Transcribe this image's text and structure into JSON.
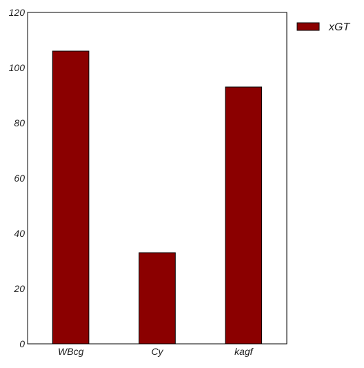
{
  "chart_data": {
    "type": "bar",
    "categories": [
      "WBcg",
      "Cy",
      "kagf"
    ],
    "series": [
      {
        "name": "xGT",
        "values": [
          106,
          33,
          93
        ],
        "color": "#8b0000"
      }
    ],
    "ylim": [
      0,
      120
    ],
    "yticks": [
      0,
      20,
      40,
      60,
      80,
      100,
      120
    ],
    "title": "",
    "xlabel": "",
    "ylabel": "",
    "grid": false,
    "legend": {
      "placement": "outside-top-right"
    }
  }
}
